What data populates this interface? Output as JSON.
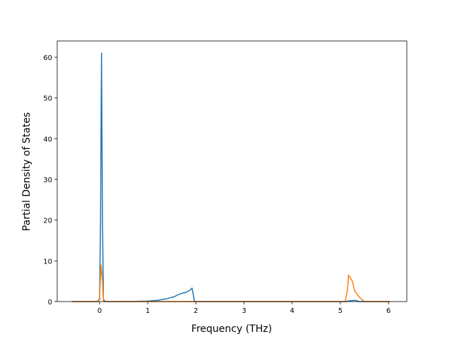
{
  "chart_data": {
    "type": "line",
    "xlabel": "Frequency (THz)",
    "ylabel": "Partial Density of States",
    "xlim": [
      -0.88,
      6.38
    ],
    "xticks": [
      0,
      1,
      2,
      3,
      4,
      5,
      6
    ],
    "ylim": [
      0,
      64
    ],
    "yticks": [
      0,
      10,
      20,
      30,
      40,
      50,
      60
    ],
    "grid": false,
    "series": [
      {
        "color": "#1f77b4",
        "x": [
          -0.58,
          -0.05,
          0.0,
          0.02,
          0.04,
          0.06,
          0.08,
          0.12,
          0.5,
          1.0,
          1.2,
          1.4,
          1.55,
          1.65,
          1.8,
          1.88,
          1.92,
          1.95,
          1.97,
          5.1,
          5.2,
          5.3,
          5.4,
          6.03
        ],
        "values": [
          0,
          0,
          0.5,
          20,
          61,
          20,
          0.5,
          0,
          0,
          0.1,
          0.3,
          0.7,
          1.2,
          1.8,
          2.3,
          2.8,
          3.3,
          1.5,
          0,
          0,
          0.2,
          0.3,
          0,
          0
        ]
      },
      {
        "color": "#ff7f0e",
        "x": [
          -0.58,
          -0.03,
          0.0,
          0.03,
          0.06,
          0.08,
          5.1,
          5.15,
          5.17,
          5.25,
          5.3,
          5.4,
          5.5,
          6.03
        ],
        "values": [
          0,
          0,
          1,
          9,
          5,
          0,
          0,
          3,
          6.5,
          5,
          2.5,
          1,
          0,
          0
        ]
      }
    ]
  }
}
